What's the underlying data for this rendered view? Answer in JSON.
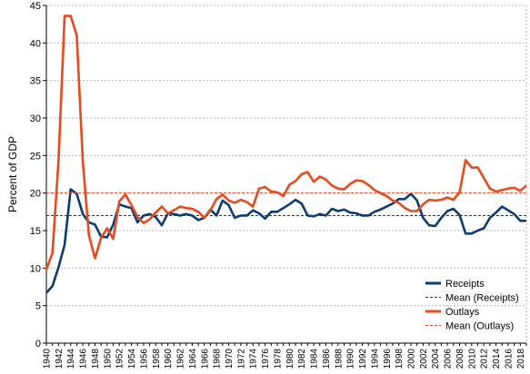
{
  "chart_data": {
    "type": "line",
    "title": "",
    "xlabel": "",
    "ylabel": "Percent of GDP",
    "xlim": [
      1940,
      2019
    ],
    "ylim": [
      0,
      45
    ],
    "yticks": [
      0,
      5,
      10,
      15,
      20,
      25,
      30,
      35,
      40,
      45
    ],
    "xticks": [
      1940,
      1942,
      1944,
      1946,
      1948,
      1950,
      1952,
      1954,
      1956,
      1958,
      1960,
      1962,
      1964,
      1966,
      1968,
      1970,
      1972,
      1974,
      1976,
      1978,
      1980,
      1982,
      1984,
      1986,
      1988,
      1990,
      1992,
      1994,
      1996,
      1998,
      2000,
      2002,
      2004,
      2006,
      2008,
      2010,
      2012,
      2014,
      2016,
      2018
    ],
    "grid": "horizontal",
    "legend_position": "bottom-right",
    "x": [
      1940,
      1941,
      1942,
      1943,
      1944,
      1945,
      1946,
      1947,
      1948,
      1949,
      1950,
      1951,
      1952,
      1953,
      1954,
      1955,
      1956,
      1957,
      1958,
      1959,
      1960,
      1961,
      1962,
      1963,
      1964,
      1965,
      1966,
      1967,
      1968,
      1969,
      1970,
      1971,
      1972,
      1973,
      1974,
      1975,
      1976,
      1977,
      1978,
      1979,
      1980,
      1981,
      1982,
      1983,
      1984,
      1985,
      1986,
      1987,
      1988,
      1989,
      1990,
      1991,
      1992,
      1993,
      1994,
      1995,
      1996,
      1997,
      1998,
      1999,
      2000,
      2001,
      2002,
      2003,
      2004,
      2005,
      2006,
      2007,
      2008,
      2009,
      2010,
      2011,
      2012,
      2013,
      2014,
      2015,
      2016,
      2017,
      2018,
      2019
    ],
    "series": [
      {
        "name": "Receipts",
        "color": "#0b3d73",
        "style": "solid",
        "values": [
          6.7,
          7.6,
          10.1,
          13.1,
          20.5,
          19.9,
          17.2,
          16.1,
          15.8,
          14.2,
          14.1,
          15.8,
          18.5,
          18.2,
          18.0,
          16.1,
          17.0,
          17.2,
          16.8,
          15.7,
          17.3,
          17.2,
          17.0,
          17.2,
          17.0,
          16.4,
          16.7,
          17.8,
          17.0,
          19.0,
          18.4,
          16.7,
          17.0,
          17.0,
          17.7,
          17.3,
          16.6,
          17.5,
          17.5,
          18.0,
          18.5,
          19.1,
          18.6,
          17.0,
          16.9,
          17.2,
          17.0,
          17.9,
          17.6,
          17.8,
          17.4,
          17.3,
          17.0,
          17.0,
          17.5,
          17.8,
          18.2,
          18.6,
          19.2,
          19.2,
          19.9,
          19.0,
          16.7,
          15.7,
          15.6,
          16.7,
          17.6,
          17.9,
          17.1,
          14.6,
          14.6,
          15.0,
          15.3,
          16.7,
          17.4,
          18.2,
          17.7,
          17.2,
          16.3,
          16.3
        ]
      },
      {
        "name": "Mean (Receipts)",
        "color": "#0b3d73",
        "style": "dashed",
        "constant": 17.0
      },
      {
        "name": "Outlays",
        "color": "#e8491d",
        "style": "solid",
        "values": [
          9.8,
          12.0,
          24.3,
          43.6,
          43.6,
          41.0,
          24.2,
          14.4,
          11.3,
          14.0,
          15.3,
          13.9,
          18.9,
          19.8,
          18.4,
          16.8,
          16.0,
          16.5,
          17.4,
          18.2,
          17.3,
          17.7,
          18.2,
          18.0,
          17.9,
          17.5,
          16.7,
          17.7,
          19.2,
          19.8,
          19.0,
          18.7,
          19.1,
          18.8,
          18.2,
          20.6,
          20.8,
          20.2,
          20.1,
          19.6,
          21.1,
          21.6,
          22.5,
          22.8,
          21.5,
          22.2,
          21.8,
          21.0,
          20.6,
          20.5,
          21.2,
          21.7,
          21.6,
          21.1,
          20.4,
          20.0,
          19.6,
          19.0,
          18.7,
          18.0,
          17.6,
          17.6,
          18.5,
          19.1,
          19.0,
          19.1,
          19.4,
          19.1,
          20.1,
          24.4,
          23.4,
          23.4,
          22.0,
          20.6,
          20.2,
          20.4,
          20.6,
          20.7,
          20.3,
          21.0
        ]
      },
      {
        "name": "Mean (Outlays)",
        "color": "#e8491d",
        "style": "dashed",
        "constant": 20.0
      }
    ]
  }
}
